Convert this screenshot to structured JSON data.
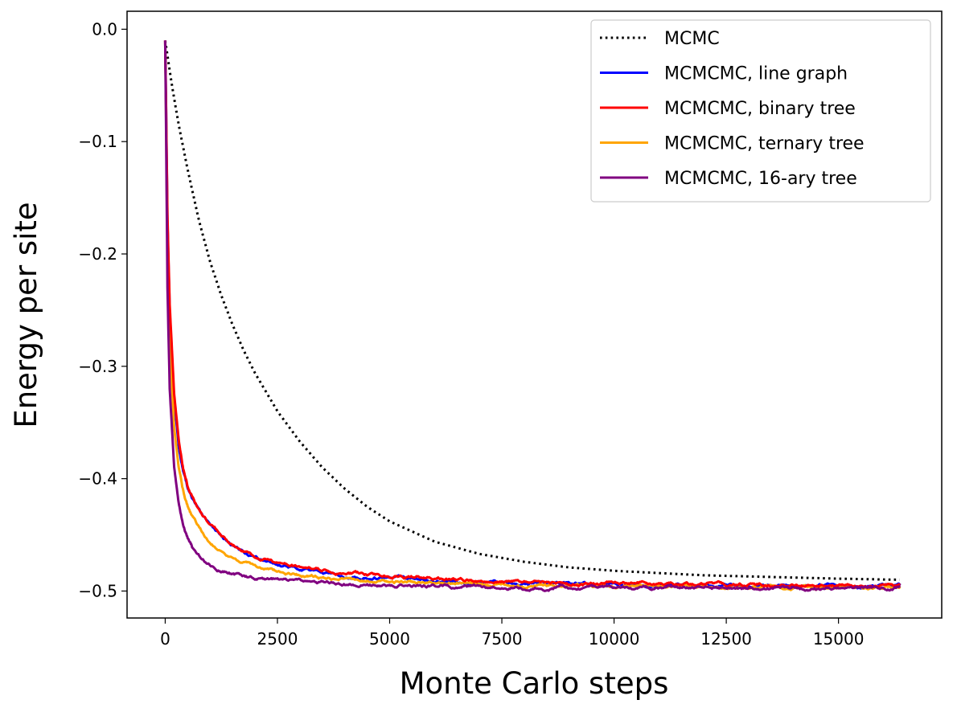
{
  "chart_data": {
    "type": "line",
    "title": "",
    "xlabel": "Monte Carlo steps",
    "ylabel": "Energy per site",
    "xlim": [
      -850,
      17300
    ],
    "ylim": [
      -0.524,
      0.016
    ],
    "xticks": [
      0,
      2500,
      5000,
      7500,
      10000,
      12500,
      15000
    ],
    "xtick_labels": [
      "0",
      "2500",
      "5000",
      "7500",
      "10000",
      "12500",
      "15000"
    ],
    "yticks": [
      0.0,
      -0.1,
      -0.2,
      -0.3,
      -0.4,
      -0.5
    ],
    "ytick_labels": [
      "0.0",
      "−0.1",
      "−0.2",
      "−0.3",
      "−0.4",
      "−0.5"
    ],
    "grid": false,
    "legend_position": "top-right",
    "series": [
      {
        "name": "MCMC",
        "color": "#000000",
        "style": "dotted",
        "x": [
          0,
          150,
          300,
          500,
          750,
          1000,
          1250,
          1500,
          1750,
          2000,
          2500,
          3000,
          3500,
          4000,
          4500,
          5000,
          6000,
          7000,
          8000,
          9000,
          10000,
          11000,
          12000,
          13000,
          14000,
          15000,
          16384
        ],
        "y": [
          -0.01,
          -0.05,
          -0.085,
          -0.125,
          -0.17,
          -0.207,
          -0.237,
          -0.263,
          -0.286,
          -0.306,
          -0.34,
          -0.367,
          -0.39,
          -0.409,
          -0.425,
          -0.438,
          -0.456,
          -0.467,
          -0.474,
          -0.479,
          -0.482,
          -0.484,
          -0.486,
          -0.487,
          -0.488,
          -0.489,
          -0.49
        ]
      },
      {
        "name": "MCMCMC, line graph",
        "color": "#0000ff",
        "style": "solid",
        "x": [
          0,
          50,
          100,
          200,
          300,
          400,
          500,
          600,
          800,
          1000,
          1250,
          1500,
          2000,
          2500,
          3000,
          3500,
          4000,
          5000,
          6000,
          7000,
          8000,
          9000,
          10000,
          11000,
          12000,
          13000,
          14000,
          15000,
          16384
        ],
        "y": [
          -0.01,
          -0.17,
          -0.25,
          -0.33,
          -0.37,
          -0.393,
          -0.408,
          -0.418,
          -0.433,
          -0.443,
          -0.452,
          -0.46,
          -0.47,
          -0.476,
          -0.48,
          -0.483,
          -0.486,
          -0.489,
          -0.491,
          -0.492,
          -0.493,
          -0.494,
          -0.494,
          -0.495,
          -0.495,
          -0.495,
          -0.496,
          -0.495,
          -0.495
        ]
      },
      {
        "name": "MCMCMC, binary tree",
        "color": "#ff0000",
        "style": "solid",
        "x": [
          0,
          50,
          100,
          200,
          300,
          400,
          500,
          600,
          800,
          1000,
          1250,
          1500,
          2000,
          2500,
          3000,
          3500,
          4000,
          5000,
          6000,
          7000,
          8000,
          9000,
          10000,
          11000,
          12000,
          13000,
          14000,
          15000,
          16384
        ],
        "y": [
          -0.01,
          -0.165,
          -0.245,
          -0.325,
          -0.365,
          -0.39,
          -0.406,
          -0.417,
          -0.432,
          -0.442,
          -0.451,
          -0.459,
          -0.469,
          -0.475,
          -0.479,
          -0.482,
          -0.484,
          -0.487,
          -0.489,
          -0.491,
          -0.492,
          -0.493,
          -0.493,
          -0.494,
          -0.494,
          -0.495,
          -0.495,
          -0.495,
          -0.496
        ]
      },
      {
        "name": "MCMCMC, ternary tree",
        "color": "#ffa500",
        "style": "solid",
        "x": [
          0,
          50,
          100,
          200,
          300,
          400,
          500,
          600,
          800,
          1000,
          1250,
          1500,
          2000,
          2500,
          3000,
          3500,
          4000,
          5000,
          6000,
          7000,
          8000,
          9000,
          10000,
          11000,
          12000,
          13000,
          14000,
          15000,
          16384
        ],
        "y": [
          -0.01,
          -0.2,
          -0.28,
          -0.355,
          -0.39,
          -0.41,
          -0.424,
          -0.434,
          -0.447,
          -0.456,
          -0.464,
          -0.47,
          -0.478,
          -0.483,
          -0.486,
          -0.488,
          -0.49,
          -0.492,
          -0.493,
          -0.494,
          -0.495,
          -0.495,
          -0.496,
          -0.496,
          -0.496,
          -0.496,
          -0.497,
          -0.497,
          -0.497
        ]
      },
      {
        "name": "MCMCMC, 16-ary tree",
        "color": "#800080",
        "style": "solid",
        "x": [
          0,
          50,
          100,
          200,
          300,
          400,
          500,
          600,
          800,
          1000,
          1250,
          1500,
          2000,
          2500,
          3000,
          3500,
          4000,
          5000,
          6000,
          7000,
          8000,
          9000,
          10000,
          11000,
          12000,
          13000,
          14000,
          15000,
          16384
        ],
        "y": [
          -0.01,
          -0.23,
          -0.32,
          -0.39,
          -0.422,
          -0.44,
          -0.452,
          -0.46,
          -0.47,
          -0.476,
          -0.481,
          -0.484,
          -0.488,
          -0.49,
          -0.492,
          -0.493,
          -0.494,
          -0.495,
          -0.496,
          -0.496,
          -0.497,
          -0.497,
          -0.497,
          -0.497,
          -0.497,
          -0.498,
          -0.498,
          -0.497,
          -0.497
        ]
      }
    ]
  }
}
